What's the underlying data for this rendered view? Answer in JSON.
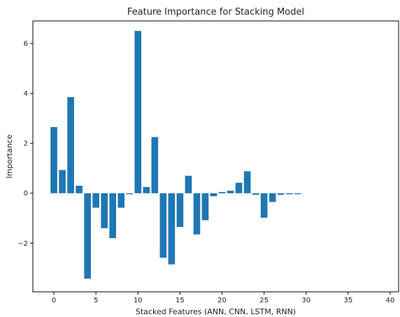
{
  "chart_data": {
    "type": "bar",
    "title": "Feature Importance for Stacking Model",
    "xlabel": "Stacked Features (ANN, CNN, LSTM, RNN)",
    "ylabel": "Importance",
    "x": [
      0,
      1,
      2,
      3,
      4,
      5,
      6,
      7,
      8,
      9,
      10,
      11,
      12,
      13,
      14,
      15,
      16,
      17,
      18,
      19,
      20,
      21,
      22,
      23,
      24,
      25,
      26,
      27,
      28,
      29
    ],
    "values": [
      2.65,
      0.93,
      3.85,
      0.3,
      -3.42,
      -0.58,
      -1.4,
      -1.8,
      -0.58,
      -0.04,
      6.5,
      0.25,
      2.25,
      -2.58,
      -2.85,
      -1.35,
      0.7,
      -1.65,
      -1.08,
      -0.12,
      0.05,
      0.1,
      0.42,
      0.88,
      -0.06,
      -0.98,
      -0.35,
      -0.06,
      -0.04,
      -0.04
    ],
    "xlim": [
      -2.5,
      41
    ],
    "ylim": [
      -3.95,
      6.9
    ],
    "xticks": [
      0,
      5,
      10,
      15,
      20,
      25,
      30,
      35,
      40
    ],
    "yticks": [
      -2,
      0,
      2,
      4,
      6
    ],
    "grid": false,
    "bar_color": "#1f77b4"
  }
}
